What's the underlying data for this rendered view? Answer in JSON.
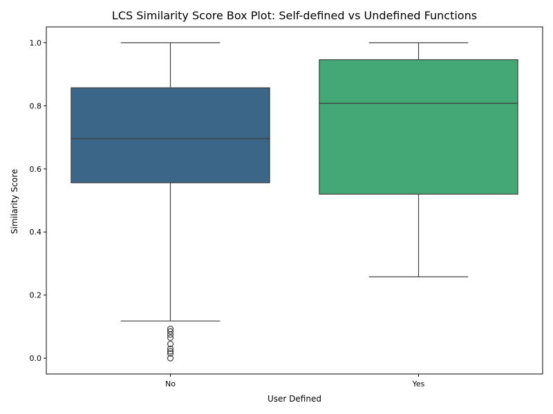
{
  "chart_data": {
    "type": "box",
    "title": "LCS Similarity Score Box Plot: Self-defined vs Undefined Functions",
    "xlabel": "User Defined",
    "ylabel": "Similarity Score",
    "ylim": [
      -0.05,
      1.05
    ],
    "yticks": [
      "0.0",
      "0.2",
      "0.4",
      "0.6",
      "0.8",
      "1.0"
    ],
    "categories": [
      "No",
      "Yes"
    ],
    "grid": false,
    "series": [
      {
        "category": "No",
        "color": "#3b6687",
        "whisker_low": 0.118,
        "q1": 0.556,
        "median": 0.696,
        "q3": 0.857,
        "whisker_high": 1.0,
        "outliers": [
          0.0,
          0.015,
          0.022,
          0.03,
          0.045,
          0.065,
          0.075,
          0.085,
          0.093
        ]
      },
      {
        "category": "Yes",
        "color": "#44a876",
        "whisker_low": 0.258,
        "q1": 0.52,
        "median": 0.808,
        "q3": 0.946,
        "whisker_high": 1.0,
        "outliers": []
      }
    ]
  }
}
